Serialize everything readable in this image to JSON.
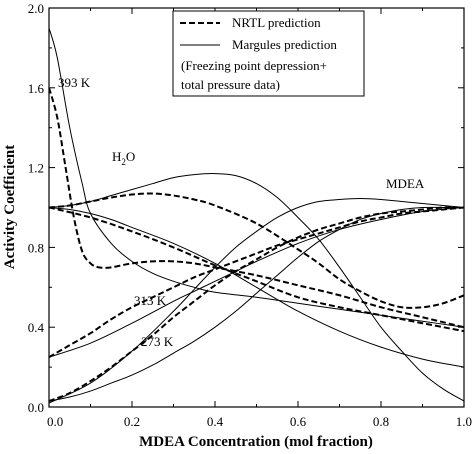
{
  "chart_data": {
    "type": "line",
    "title": "",
    "xlabel": "MDEA Concentration (mol fraction)",
    "ylabel": "Activity Coefficient",
    "xlim": [
      0.0,
      1.0
    ],
    "ylim": [
      0.0,
      2.0
    ],
    "xticks": [
      "0.0",
      "0.2",
      "0.4",
      "0.6",
      "0.8",
      "1.0"
    ],
    "yticks": [
      "0.0",
      "0.4",
      "0.8",
      "1.2",
      "1.6",
      "2.0"
    ],
    "grid": false,
    "legend_position": "top-center",
    "legend": [
      {
        "label": "NRTL prediction",
        "style": "dashed"
      },
      {
        "label": "Margules prediction",
        "style": "solid"
      }
    ],
    "legend_note_lines": [
      "(Freezing point depression+",
      "total pressure data)"
    ],
    "annotations": {
      "t393": "393 K",
      "t313": "313 K",
      "t273": "273 K",
      "mdea": "MDEA",
      "h2o_main": "H",
      "h2o_sub": "2",
      "h2o_tail": "O"
    },
    "series": [
      {
        "style": "solid",
        "component": "H2O",
        "x": [
          0.0,
          0.05,
          0.1,
          0.15,
          0.2,
          0.25,
          0.3,
          0.35,
          0.4,
          0.45,
          0.5,
          0.55,
          0.6,
          0.65,
          0.7,
          0.75,
          0.8,
          0.85,
          0.9,
          0.95,
          1.0
        ],
        "y": [
          1.0,
          1.01,
          1.03,
          1.06,
          1.09,
          1.12,
          1.15,
          1.165,
          1.17,
          1.16,
          1.12,
          1.05,
          0.95,
          0.84,
          0.7,
          0.55,
          0.4,
          0.28,
          0.17,
          0.09,
          0.03
        ]
      },
      {
        "style": "solid",
        "component": "H2O",
        "x": [
          0.0,
          0.05,
          0.1,
          0.15,
          0.2,
          0.3,
          0.4,
          0.5,
          0.6,
          0.7,
          0.8,
          0.9,
          1.0
        ],
        "y": [
          1.0,
          0.99,
          0.97,
          0.94,
          0.9,
          0.82,
          0.72,
          0.6,
          0.48,
          0.38,
          0.3,
          0.24,
          0.2
        ]
      },
      {
        "style": "solid",
        "component": "H2O",
        "x": [
          0.0,
          0.02,
          0.05,
          0.08,
          0.1,
          0.15,
          0.2,
          0.25,
          0.3,
          0.35,
          0.4,
          0.5,
          0.6,
          0.7,
          0.8,
          0.9,
          1.0
        ],
        "y": [
          1.9,
          1.75,
          1.4,
          1.12,
          0.97,
          0.82,
          0.73,
          0.67,
          0.63,
          0.6,
          0.575,
          0.55,
          0.52,
          0.49,
          0.46,
          0.43,
          0.4
        ]
      },
      {
        "style": "dashed",
        "component": "H2O",
        "x": [
          0.0,
          0.05,
          0.1,
          0.15,
          0.2,
          0.25,
          0.3,
          0.35,
          0.4,
          0.5,
          0.6,
          0.65,
          0.7,
          0.75,
          0.8,
          0.85,
          0.9,
          0.95,
          1.0
        ],
        "y": [
          1.0,
          1.01,
          1.03,
          1.05,
          1.065,
          1.07,
          1.06,
          1.04,
          1.01,
          0.92,
          0.79,
          0.72,
          0.64,
          0.58,
          0.53,
          0.5,
          0.5,
          0.52,
          0.56
        ]
      },
      {
        "style": "dashed",
        "component": "H2O",
        "x": [
          0.0,
          0.1,
          0.2,
          0.3,
          0.4,
          0.5,
          0.6,
          0.7,
          0.8,
          0.9,
          1.0
        ],
        "y": [
          1.0,
          0.95,
          0.88,
          0.8,
          0.71,
          0.63,
          0.55,
          0.5,
          0.46,
          0.42,
          0.38
        ]
      },
      {
        "style": "dashed",
        "component": "H2O",
        "x": [
          0.0,
          0.02,
          0.04,
          0.06,
          0.08,
          0.1,
          0.12,
          0.15,
          0.2,
          0.25,
          0.3,
          0.35,
          0.4,
          0.5,
          0.6,
          0.7,
          0.8,
          0.9,
          1.0
        ],
        "y": [
          1.6,
          1.45,
          1.2,
          0.95,
          0.78,
          0.72,
          0.7,
          0.7,
          0.72,
          0.73,
          0.73,
          0.72,
          0.7,
          0.66,
          0.61,
          0.56,
          0.5,
          0.45,
          0.4
        ]
      },
      {
        "style": "solid",
        "component": "MDEA",
        "x": [
          0.0,
          0.05,
          0.1,
          0.15,
          0.2,
          0.25,
          0.3,
          0.35,
          0.4,
          0.45,
          0.5,
          0.55,
          0.6,
          0.65,
          0.7,
          0.75,
          0.8,
          0.85,
          0.9,
          0.95,
          1.0
        ],
        "y": [
          0.03,
          0.05,
          0.08,
          0.12,
          0.16,
          0.21,
          0.27,
          0.33,
          0.4,
          0.48,
          0.57,
          0.66,
          0.75,
          0.83,
          0.89,
          0.94,
          0.97,
          0.99,
          1.0,
          1.0,
          1.0
        ]
      },
      {
        "style": "solid",
        "component": "MDEA",
        "x": [
          0.0,
          0.1,
          0.2,
          0.3,
          0.35,
          0.4,
          0.45,
          0.5,
          0.6,
          0.7,
          0.8,
          0.9,
          1.0
        ],
        "y": [
          0.25,
          0.32,
          0.42,
          0.53,
          0.58,
          0.63,
          0.68,
          0.73,
          0.82,
          0.89,
          0.94,
          0.98,
          1.0
        ]
      },
      {
        "style": "solid",
        "component": "MDEA",
        "x": [
          0.0,
          0.1,
          0.2,
          0.3,
          0.35,
          0.4,
          0.45,
          0.5,
          0.55,
          0.6,
          0.65,
          0.7,
          0.75,
          0.8,
          0.85,
          0.9,
          0.95,
          1.0
        ],
        "y": [
          0.02,
          0.12,
          0.28,
          0.48,
          0.59,
          0.7,
          0.8,
          0.88,
          0.95,
          1.0,
          1.03,
          1.04,
          1.045,
          1.04,
          1.03,
          1.02,
          1.01,
          1.0
        ]
      },
      {
        "style": "dashed",
        "component": "MDEA",
        "x": [
          0.0,
          0.05,
          0.1,
          0.15,
          0.2,
          0.25,
          0.3,
          0.35,
          0.4,
          0.45,
          0.5,
          0.55,
          0.6,
          0.65,
          0.7,
          0.75,
          0.8,
          0.85,
          0.9,
          0.95,
          1.0
        ],
        "y": [
          0.03,
          0.07,
          0.13,
          0.2,
          0.28,
          0.36,
          0.45,
          0.53,
          0.61,
          0.68,
          0.74,
          0.8,
          0.85,
          0.89,
          0.92,
          0.95,
          0.97,
          0.98,
          0.99,
          1.0,
          1.0
        ]
      },
      {
        "style": "dashed",
        "component": "MDEA",
        "x": [
          0.0,
          0.05,
          0.1,
          0.15,
          0.2,
          0.25,
          0.3,
          0.35,
          0.4,
          0.45,
          0.5,
          0.55,
          0.6,
          0.65,
          0.7,
          0.75,
          0.8,
          0.85,
          0.9,
          0.95,
          1.0
        ],
        "y": [
          0.25,
          0.31,
          0.37,
          0.44,
          0.5,
          0.55,
          0.6,
          0.65,
          0.69,
          0.73,
          0.77,
          0.81,
          0.84,
          0.87,
          0.9,
          0.93,
          0.95,
          0.97,
          0.98,
          0.99,
          1.0
        ]
      }
    ]
  }
}
